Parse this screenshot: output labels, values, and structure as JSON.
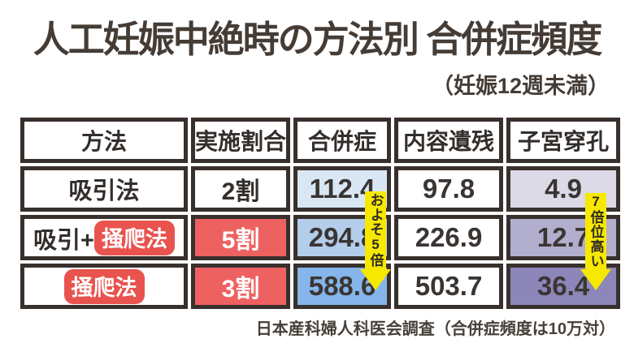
{
  "title": "人工妊娠中絶時の方法別 合併症頻度",
  "subtitle": "（妊娠12週未満）",
  "caption": "日本産科婦人科医会調査（合併症頻度は10万対）",
  "annotations": {
    "complication_note": "およそ5倍",
    "perforation_note": "7倍位高い"
  },
  "table": {
    "headers": [
      "方法",
      "実施割合",
      "合併症",
      "内容遺残",
      "子宮穿孔"
    ],
    "rows": [
      {
        "method": "吸引法",
        "method_badge": "",
        "rate": "2割",
        "complication": "112.4",
        "retained": "97.8",
        "perforation": "4.9"
      },
      {
        "method": "吸引+",
        "method_badge": "掻爬法",
        "rate": "5割",
        "complication": "294.8",
        "retained": "226.9",
        "perforation": "12.7"
      },
      {
        "method": "",
        "method_badge": "掻爬法",
        "rate": "3割",
        "complication": "588.6",
        "retained": "503.7",
        "perforation": "36.4"
      }
    ]
  },
  "colors": {
    "border": "#38302c",
    "title_text": "#453c36",
    "red_cell": "#ee6161",
    "red_badge": "#e9534e",
    "annotation_yellow": "#f7e800",
    "blue_light": "#d9e7f5",
    "blue_mid": "#b3cdeb",
    "blue_dark": "#85b5ea",
    "purple_light": "#dcdae7",
    "purple_mid": "#b2aecd",
    "purple_dark": "#8d86b8"
  },
  "chart_data": {
    "type": "table",
    "title": "人工妊娠中絶時の方法別 合併症頻度",
    "subtitle": "（妊娠12週未満）",
    "columns": [
      "方法",
      "実施割合",
      "合併症",
      "内容遺残",
      "子宮穿孔"
    ],
    "rows": [
      {
        "方法": "吸引法",
        "実施割合": "2割",
        "合併症": 112.4,
        "内容遺残": 97.8,
        "子宮穿孔": 4.9
      },
      {
        "方法": "吸引+掻爬法",
        "実施割合": "5割",
        "合併症": 294.8,
        "内容遺残": 226.9,
        "子宮穿孔": 12.7
      },
      {
        "方法": "掻爬法",
        "実施割合": "3割",
        "合併症": 588.6,
        "内容遺残": 503.7,
        "子宮穿孔": 36.4
      }
    ],
    "annotations": [
      "およそ5倍 (合併症: 吸引法→掻爬法)",
      "7倍位高い (子宮穿孔: 吸引法→掻爬法)"
    ],
    "note": "日本産科婦人科医会調査（合併症頻度は10万対）",
    "unit": "per 100,000"
  }
}
